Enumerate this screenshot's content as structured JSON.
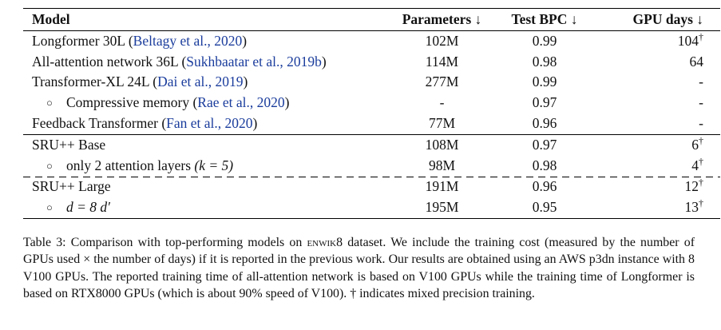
{
  "table": {
    "headers": {
      "model": "Model",
      "params": "Parameters ↓",
      "bpc": "Test BPC ↓",
      "gpu": "GPU days ↓"
    },
    "rows": [
      {
        "indent": false,
        "name": "Longformer 30L",
        "cite": "Beltagy et al., 2020",
        "params": "102M",
        "bpc": "0.99",
        "gpu": "104",
        "dagger": "†"
      },
      {
        "indent": false,
        "name": "All-attention network 36L",
        "cite": "Sukhbaatar et al., 2019b",
        "params": "114M",
        "bpc": "0.98",
        "gpu": "64",
        "dagger": ""
      },
      {
        "indent": false,
        "name": "Transformer-XL 24L",
        "cite": "Dai et al., 2019",
        "params": "277M",
        "bpc": "0.99",
        "gpu": "-",
        "dagger": ""
      },
      {
        "indent": true,
        "name": "Compressive memory",
        "cite": "Rae et al., 2020",
        "params": "-",
        "bpc": "0.97",
        "gpu": "-",
        "dagger": ""
      },
      {
        "indent": false,
        "name": "Feedback Transformer",
        "cite": "Fan et al., 2020",
        "params": "77M",
        "bpc": "0.96",
        "gpu": "-",
        "dagger": ""
      },
      {
        "indent": false,
        "name": "SRU++ Base",
        "cite": "",
        "params": "108M",
        "bpc": "0.97",
        "gpu": "6",
        "dagger": "†"
      },
      {
        "indent": true,
        "name": "only 2 attention layers",
        "math_note": "(k = 5)",
        "cite": "",
        "params": "98M",
        "bpc": "0.98",
        "gpu": "4",
        "dagger": "†"
      },
      {
        "indent": false,
        "name": "SRU++ Large",
        "cite": "",
        "params": "191M",
        "bpc": "0.96",
        "gpu": "12",
        "dagger": "†"
      },
      {
        "indent": true,
        "math_name": "d = 8 d′",
        "cite": "",
        "params": "195M",
        "bpc": "0.95",
        "gpu": "13",
        "dagger": "†"
      }
    ],
    "bullet": "○"
  },
  "caption": {
    "label": "Table 3:",
    "before_dataset": " Comparison with top-performing models on ",
    "dataset": "enwik8",
    "after_dataset": " dataset. We include the training cost (measured by the number of GPUs used × the number of days) if it is reported in the previous work. Our results are obtained using an AWS p3dn instance with 8 V100 GPUs. The reported training time of all-attention network is based on V100 GPUs while the training time of Longformer is based on RTX8000 GPUs (which is about 90% speed of V100). † indicates mixed precision training."
  },
  "colors": {
    "citation": "#1a3c9c",
    "text": "#111111"
  }
}
